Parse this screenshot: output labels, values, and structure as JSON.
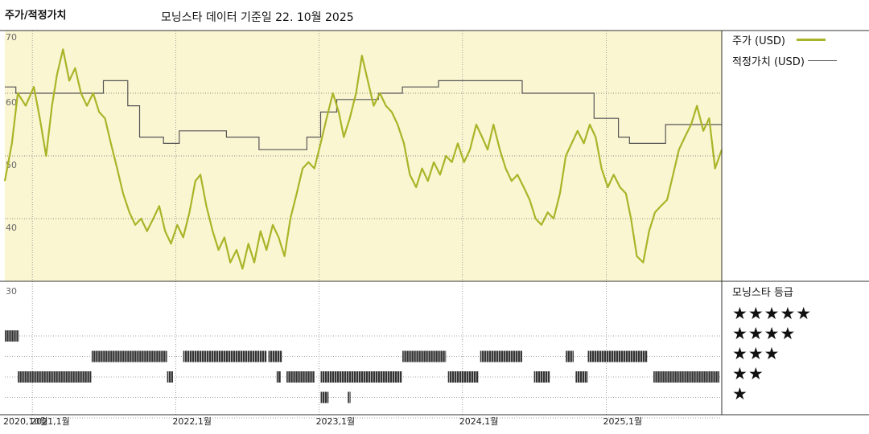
{
  "header": {
    "y_axis_title": "주가/적정가치",
    "title": "모닝스타 데이터 기준일 22. 10월 2025"
  },
  "legend": {
    "price": "주가 (USD)",
    "fair_value": "적정가치 (USD)",
    "rating_title": "모닝스타 등급"
  },
  "colors": {
    "price": "#aab428",
    "fair_value": "#555555",
    "plot_bg": "#fbf6d2",
    "bars": "#333333"
  },
  "chart_data": {
    "type": "line",
    "ylim": [
      30,
      70
    ],
    "yticks": [
      70,
      60,
      50,
      40,
      30
    ],
    "xlim": [
      "2020-10-23",
      "2025-10-22"
    ],
    "xticks": [
      {
        "label": "2020,10월",
        "date": "2020-10-23"
      },
      {
        "label": "2021,1월",
        "date": "2021-01-01"
      },
      {
        "label": "2022,1월",
        "date": "2022-01-01"
      },
      {
        "label": "2023,1월",
        "date": "2023-01-01"
      },
      {
        "label": "2024,1월",
        "date": "2024-01-01"
      },
      {
        "label": "2025,1월",
        "date": "2025-01-01"
      }
    ],
    "series": [
      {
        "name": "주가 (USD)",
        "points": [
          [
            "2020-10-23",
            46
          ],
          [
            "2020-11-10",
            52
          ],
          [
            "2020-11-25",
            60
          ],
          [
            "2020-12-15",
            58
          ],
          [
            "2021-01-05",
            61
          ],
          [
            "2021-01-20",
            56
          ],
          [
            "2021-02-05",
            50
          ],
          [
            "2021-02-20",
            58
          ],
          [
            "2021-03-05",
            63
          ],
          [
            "2021-03-20",
            67
          ],
          [
            "2021-04-05",
            62
          ],
          [
            "2021-04-20",
            64
          ],
          [
            "2021-05-05",
            60
          ],
          [
            "2021-05-20",
            58
          ],
          [
            "2021-06-05",
            60
          ],
          [
            "2021-06-20",
            57
          ],
          [
            "2021-07-05",
            56
          ],
          [
            "2021-07-20",
            52
          ],
          [
            "2021-08-05",
            48
          ],
          [
            "2021-08-20",
            44
          ],
          [
            "2021-09-05",
            41
          ],
          [
            "2021-09-20",
            39
          ],
          [
            "2021-10-05",
            40
          ],
          [
            "2021-10-20",
            38
          ],
          [
            "2021-11-05",
            40
          ],
          [
            "2021-11-20",
            42
          ],
          [
            "2021-12-05",
            38
          ],
          [
            "2021-12-20",
            36
          ],
          [
            "2022-01-05",
            39
          ],
          [
            "2022-01-20",
            37
          ],
          [
            "2022-02-05",
            41
          ],
          [
            "2022-02-20",
            46
          ],
          [
            "2022-03-05",
            47
          ],
          [
            "2022-03-20",
            42
          ],
          [
            "2022-04-05",
            38
          ],
          [
            "2022-04-20",
            35
          ],
          [
            "2022-05-05",
            37
          ],
          [
            "2022-05-20",
            33
          ],
          [
            "2022-06-05",
            35
          ],
          [
            "2022-06-20",
            32
          ],
          [
            "2022-07-05",
            36
          ],
          [
            "2022-07-20",
            33
          ],
          [
            "2022-08-05",
            38
          ],
          [
            "2022-08-20",
            35
          ],
          [
            "2022-09-05",
            39
          ],
          [
            "2022-09-20",
            37
          ],
          [
            "2022-10-05",
            34
          ],
          [
            "2022-10-20",
            40
          ],
          [
            "2022-11-05",
            44
          ],
          [
            "2022-11-20",
            48
          ],
          [
            "2022-12-05",
            49
          ],
          [
            "2022-12-20",
            48
          ],
          [
            "2023-01-05",
            52
          ],
          [
            "2023-01-20",
            56
          ],
          [
            "2023-02-05",
            60
          ],
          [
            "2023-02-20",
            57
          ],
          [
            "2023-03-05",
            53
          ],
          [
            "2023-03-20",
            56
          ],
          [
            "2023-04-05",
            60
          ],
          [
            "2023-04-20",
            66
          ],
          [
            "2023-05-05",
            62
          ],
          [
            "2023-05-20",
            58
          ],
          [
            "2023-06-05",
            60
          ],
          [
            "2023-06-20",
            58
          ],
          [
            "2023-07-05",
            57
          ],
          [
            "2023-07-20",
            55
          ],
          [
            "2023-08-05",
            52
          ],
          [
            "2023-08-20",
            47
          ],
          [
            "2023-09-05",
            45
          ],
          [
            "2023-09-20",
            48
          ],
          [
            "2023-10-05",
            46
          ],
          [
            "2023-10-20",
            49
          ],
          [
            "2023-11-05",
            47
          ],
          [
            "2023-11-20",
            50
          ],
          [
            "2023-12-05",
            49
          ],
          [
            "2023-12-20",
            52
          ],
          [
            "2024-01-05",
            49
          ],
          [
            "2024-01-20",
            51
          ],
          [
            "2024-02-05",
            55
          ],
          [
            "2024-02-20",
            53
          ],
          [
            "2024-03-05",
            51
          ],
          [
            "2024-03-20",
            55
          ],
          [
            "2024-04-05",
            51
          ],
          [
            "2024-04-20",
            48
          ],
          [
            "2024-05-05",
            46
          ],
          [
            "2024-05-20",
            47
          ],
          [
            "2024-06-05",
            45
          ],
          [
            "2024-06-20",
            43
          ],
          [
            "2024-07-05",
            40
          ],
          [
            "2024-07-20",
            39
          ],
          [
            "2024-08-05",
            41
          ],
          [
            "2024-08-20",
            40
          ],
          [
            "2024-09-05",
            44
          ],
          [
            "2024-09-20",
            50
          ],
          [
            "2024-10-05",
            52
          ],
          [
            "2024-10-20",
            54
          ],
          [
            "2024-11-05",
            52
          ],
          [
            "2024-11-20",
            55
          ],
          [
            "2024-12-05",
            53
          ],
          [
            "2024-12-20",
            48
          ],
          [
            "2025-01-05",
            45
          ],
          [
            "2025-01-20",
            47
          ],
          [
            "2025-02-05",
            45
          ],
          [
            "2025-02-20",
            44
          ],
          [
            "2025-03-05",
            40
          ],
          [
            "2025-03-20",
            34
          ],
          [
            "2025-04-05",
            33
          ],
          [
            "2025-04-20",
            38
          ],
          [
            "2025-05-05",
            41
          ],
          [
            "2025-05-20",
            42
          ],
          [
            "2025-06-05",
            43
          ],
          [
            "2025-06-20",
            47
          ],
          [
            "2025-07-05",
            51
          ],
          [
            "2025-07-20",
            53
          ],
          [
            "2025-08-05",
            55
          ],
          [
            "2025-08-20",
            58
          ],
          [
            "2025-09-05",
            54
          ],
          [
            "2025-09-20",
            56
          ],
          [
            "2025-10-05",
            48
          ],
          [
            "2025-10-22",
            51
          ]
        ]
      },
      {
        "name": "적정가치 (USD)",
        "step": true,
        "points": [
          [
            "2020-10-23",
            61
          ],
          [
            "2020-11-20",
            61
          ],
          [
            "2020-11-20",
            60
          ],
          [
            "2021-07-01",
            60
          ],
          [
            "2021-07-01",
            62
          ],
          [
            "2021-09-01",
            62
          ],
          [
            "2021-09-01",
            58
          ],
          [
            "2021-10-01",
            58
          ],
          [
            "2021-10-01",
            53
          ],
          [
            "2021-12-01",
            53
          ],
          [
            "2021-12-01",
            52
          ],
          [
            "2022-01-10",
            52
          ],
          [
            "2022-01-10",
            54
          ],
          [
            "2022-05-10",
            54
          ],
          [
            "2022-05-10",
            53
          ],
          [
            "2022-08-01",
            53
          ],
          [
            "2022-08-01",
            51
          ],
          [
            "2022-12-01",
            51
          ],
          [
            "2022-12-01",
            53
          ],
          [
            "2023-01-05",
            53
          ],
          [
            "2023-01-05",
            57
          ],
          [
            "2023-02-15",
            57
          ],
          [
            "2023-02-15",
            59
          ],
          [
            "2023-06-01",
            59
          ],
          [
            "2023-06-01",
            60
          ],
          [
            "2023-08-01",
            60
          ],
          [
            "2023-08-01",
            61
          ],
          [
            "2023-11-01",
            61
          ],
          [
            "2023-11-01",
            62
          ],
          [
            "2024-06-01",
            62
          ],
          [
            "2024-06-01",
            60
          ],
          [
            "2024-12-01",
            60
          ],
          [
            "2024-12-01",
            56
          ],
          [
            "2025-02-01",
            56
          ],
          [
            "2025-02-01",
            53
          ],
          [
            "2025-03-01",
            53
          ],
          [
            "2025-03-01",
            52
          ],
          [
            "2025-06-01",
            52
          ],
          [
            "2025-06-01",
            55
          ],
          [
            "2025-10-22",
            55
          ]
        ]
      }
    ],
    "ratings": {
      "levels": [
        5,
        4,
        3,
        2,
        1
      ],
      "segments": [
        {
          "stars": 5,
          "start": "2020-10-23",
          "end": "2020-11-28"
        },
        {
          "stars": 4,
          "start": "2021-06-01",
          "end": "2021-12-10"
        },
        {
          "stars": 4,
          "start": "2022-01-20",
          "end": "2022-08-20"
        },
        {
          "stars": 4,
          "start": "2022-08-25",
          "end": "2022-09-28"
        },
        {
          "stars": 4,
          "start": "2023-08-01",
          "end": "2023-11-20"
        },
        {
          "stars": 4,
          "start": "2024-02-15",
          "end": "2024-06-01"
        },
        {
          "stars": 4,
          "start": "2024-09-20",
          "end": "2024-10-10"
        },
        {
          "stars": 4,
          "start": "2024-11-15",
          "end": "2025-04-15"
        },
        {
          "stars": 3,
          "start": "2020-11-25",
          "end": "2021-05-31"
        },
        {
          "stars": 3,
          "start": "2021-12-10",
          "end": "2021-12-25"
        },
        {
          "stars": 3,
          "start": "2022-09-15",
          "end": "2022-09-25"
        },
        {
          "stars": 3,
          "start": "2022-10-10",
          "end": "2022-12-20"
        },
        {
          "stars": 3,
          "start": "2023-01-05",
          "end": "2023-07-31"
        },
        {
          "stars": 3,
          "start": "2023-11-25",
          "end": "2024-02-10"
        },
        {
          "stars": 3,
          "start": "2024-07-01",
          "end": "2024-08-10"
        },
        {
          "stars": 3,
          "start": "2024-10-15",
          "end": "2024-11-15"
        },
        {
          "stars": 3,
          "start": "2025-05-01",
          "end": "2025-10-22"
        },
        {
          "stars": 2,
          "start": "2023-01-05",
          "end": "2023-01-25"
        },
        {
          "stars": 2,
          "start": "2023-03-15",
          "end": "2023-03-22"
        }
      ]
    }
  }
}
